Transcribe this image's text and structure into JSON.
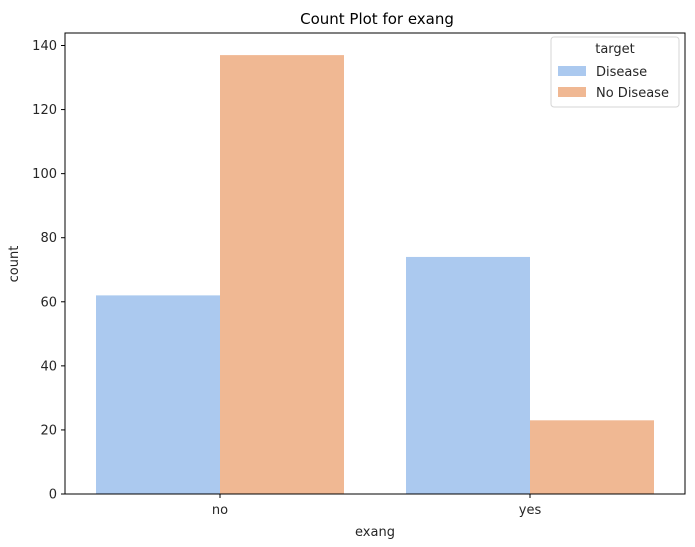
{
  "chart_data": {
    "type": "bar",
    "title": "Count Plot for exang",
    "xlabel": "exang",
    "ylabel": "count",
    "categories": [
      "no",
      "yes"
    ],
    "ylim": [
      0,
      143.9
    ],
    "yticks": [
      0,
      20,
      40,
      60,
      80,
      100,
      120,
      140
    ],
    "grid": false,
    "legend": {
      "title": "target",
      "placement": "top-right"
    },
    "series": [
      {
        "name": "Disease",
        "values": [
          62,
          74
        ],
        "color": "#abc9ef"
      },
      {
        "name": "No Disease",
        "values": [
          137,
          23
        ],
        "color": "#f0b893"
      }
    ]
  }
}
